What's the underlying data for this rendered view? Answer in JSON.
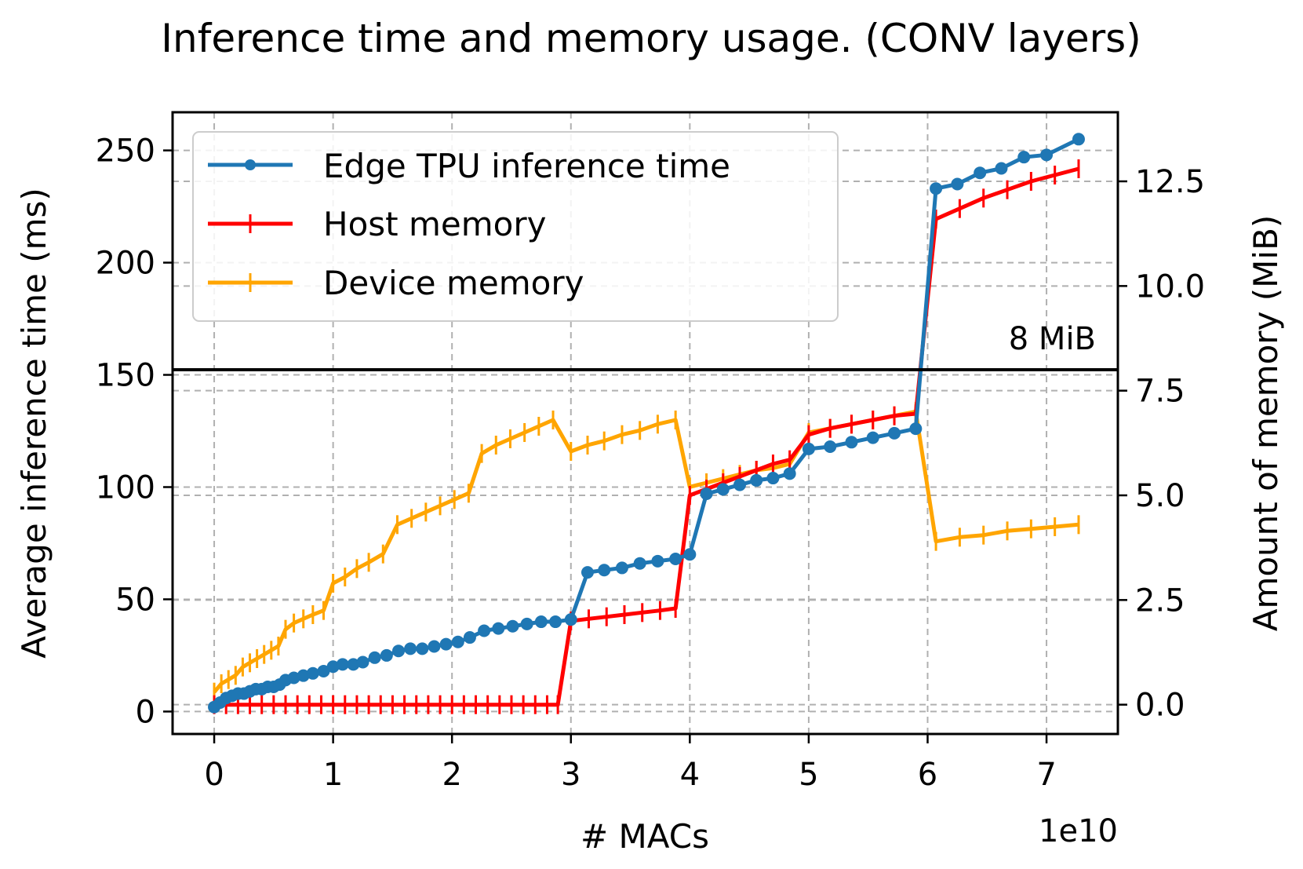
{
  "chart_data": {
    "type": "line",
    "title": "Inference time and memory usage. (CONV layers)",
    "xlabel": "# MACs",
    "x_offset_label": "1e10",
    "ylabel_left": "Average inference time (ms)",
    "ylabel_right": "Amount of memory (MiB)",
    "xlim": [
      -0.35,
      7.6
    ],
    "ylim_left": [
      -10,
      267
    ],
    "ylim_right": [
      -0.7,
      14.15
    ],
    "xticks": [
      0,
      1,
      2,
      3,
      4,
      5,
      6,
      7
    ],
    "yticks_left": [
      0,
      50,
      100,
      150,
      200,
      250
    ],
    "yticks_right": [
      0.0,
      2.5,
      5.0,
      7.5,
      10.0,
      12.5
    ],
    "ytick_labels_right": [
      "0.0",
      "2.5",
      "5.0",
      "7.5",
      "10.0",
      "12.5"
    ],
    "grid": true,
    "legend_position": "upper-left",
    "reference_line": {
      "axis": "right",
      "value": 8,
      "label": "8 MiB"
    },
    "series": [
      {
        "name": "Edge TPU inference time",
        "axis": "left",
        "color": "#1f77b4",
        "marker": "dot",
        "x": [
          0.0,
          0.05,
          0.1,
          0.15,
          0.2,
          0.25,
          0.3,
          0.35,
          0.4,
          0.45,
          0.5,
          0.55,
          0.6,
          0.67,
          0.75,
          0.83,
          0.92,
          1.0,
          1.08,
          1.17,
          1.25,
          1.35,
          1.45,
          1.55,
          1.65,
          1.75,
          1.85,
          1.95,
          2.05,
          2.15,
          2.27,
          2.39,
          2.51,
          2.63,
          2.75,
          2.87,
          3.0,
          3.14,
          3.28,
          3.43,
          3.58,
          3.73,
          3.88,
          4.0,
          4.14,
          4.28,
          4.42,
          4.56,
          4.7,
          4.84,
          5.0,
          5.18,
          5.36,
          5.54,
          5.72,
          5.9,
          6.07,
          6.25,
          6.44,
          6.62,
          6.81,
          7.0,
          7.27
        ],
        "y": [
          2,
          4,
          6,
          7,
          8,
          8,
          9,
          10,
          10,
          11,
          11,
          12,
          14,
          15,
          16,
          17,
          18,
          20,
          21,
          21,
          22,
          24,
          25,
          27,
          28,
          28,
          29,
          30,
          31,
          33,
          36,
          37,
          38,
          39,
          40,
          40,
          41,
          62,
          63,
          64,
          66,
          67,
          68,
          70,
          97,
          99,
          101,
          103,
          104,
          106,
          117,
          118,
          120,
          122,
          124,
          126,
          233,
          235,
          240,
          242,
          247,
          248,
          255
        ]
      },
      {
        "name": "Host memory",
        "axis": "right",
        "color": "#ff0000",
        "marker": "vline",
        "x": [
          0.0,
          0.1,
          0.2,
          0.3,
          0.4,
          0.5,
          0.6,
          0.7,
          0.8,
          0.9,
          1.0,
          1.1,
          1.2,
          1.3,
          1.4,
          1.5,
          1.6,
          1.7,
          1.8,
          1.9,
          2.0,
          2.1,
          2.2,
          2.3,
          2.4,
          2.5,
          2.6,
          2.7,
          2.8,
          2.89,
          3.0,
          3.15,
          3.3,
          3.45,
          3.6,
          3.75,
          3.88,
          4.0,
          4.14,
          4.28,
          4.42,
          4.56,
          4.7,
          4.84,
          5.0,
          5.18,
          5.36,
          5.54,
          5.72,
          5.9,
          6.07,
          6.27,
          6.47,
          6.67,
          6.87,
          7.07,
          7.27
        ],
        "y": [
          0.0,
          0.0,
          0.0,
          0.0,
          0.0,
          0.0,
          0.0,
          0.0,
          0.0,
          0.0,
          0.0,
          0.0,
          0.0,
          0.0,
          0.0,
          0.0,
          0.0,
          0.0,
          0.0,
          0.0,
          0.0,
          0.0,
          0.0,
          0.0,
          0.0,
          0.0,
          0.0,
          0.0,
          0.0,
          0.0,
          2.0,
          2.05,
          2.1,
          2.15,
          2.2,
          2.25,
          2.3,
          5.0,
          5.15,
          5.3,
          5.45,
          5.6,
          5.75,
          5.85,
          6.45,
          6.6,
          6.7,
          6.8,
          6.9,
          6.95,
          11.6,
          11.85,
          12.1,
          12.3,
          12.5,
          12.65,
          12.8
        ]
      },
      {
        "name": "Device memory",
        "axis": "right",
        "color": "#ffa500",
        "marker": "vline",
        "x": [
          0.0,
          0.06,
          0.12,
          0.18,
          0.24,
          0.3,
          0.36,
          0.42,
          0.48,
          0.54,
          0.6,
          0.67,
          0.75,
          0.83,
          0.92,
          1.0,
          1.1,
          1.2,
          1.3,
          1.42,
          1.54,
          1.66,
          1.78,
          1.9,
          2.02,
          2.14,
          2.25,
          2.37,
          2.49,
          2.61,
          2.73,
          2.85,
          3.0,
          3.14,
          3.28,
          3.43,
          3.58,
          3.73,
          3.88,
          4.0,
          4.14,
          4.28,
          4.42,
          4.56,
          4.7,
          4.84,
          5.0,
          5.18,
          5.36,
          5.54,
          5.72,
          5.9,
          6.07,
          6.27,
          6.47,
          6.67,
          6.87,
          7.07,
          7.27
        ],
        "y": [
          0.3,
          0.5,
          0.6,
          0.7,
          0.9,
          1.0,
          1.1,
          1.2,
          1.3,
          1.4,
          1.8,
          1.95,
          2.05,
          2.15,
          2.25,
          2.9,
          3.05,
          3.25,
          3.4,
          3.6,
          4.3,
          4.45,
          4.6,
          4.75,
          4.9,
          5.05,
          6.0,
          6.2,
          6.35,
          6.5,
          6.65,
          6.8,
          6.05,
          6.2,
          6.3,
          6.45,
          6.55,
          6.7,
          6.8,
          5.2,
          5.3,
          5.4,
          5.5,
          5.6,
          5.65,
          5.75,
          6.5,
          6.6,
          6.7,
          6.8,
          6.9,
          7.0,
          3.9,
          4.0,
          4.05,
          4.15,
          4.2,
          4.25,
          4.3
        ]
      }
    ]
  }
}
